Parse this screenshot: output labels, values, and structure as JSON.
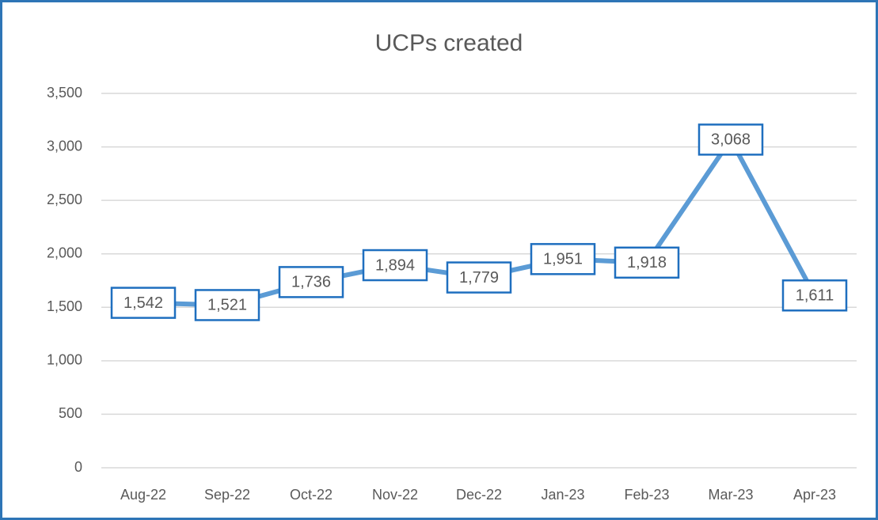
{
  "chart_data": {
    "type": "line",
    "title": "UCPs created",
    "categories": [
      "Aug-22",
      "Sep-22",
      "Oct-22",
      "Nov-22",
      "Dec-22",
      "Jan-23",
      "Feb-23",
      "Mar-23",
      "Apr-23"
    ],
    "series": [
      {
        "name": "UCPs created",
        "color": "#5b9bd5",
        "values": [
          1542,
          1521,
          1736,
          1894,
          1779,
          1951,
          1918,
          3068,
          1611
        ],
        "value_labels": [
          "1,542",
          "1,521",
          "1,736",
          "1,894",
          "1,779",
          "1,951",
          "1,918",
          "3,068",
          "1,611"
        ]
      }
    ],
    "ylim": [
      0,
      3500
    ],
    "yticks": [
      0,
      500,
      {
        "value": 1000,
        "label": "1,000"
      },
      {
        "value": 1500,
        "label": "1,500"
      },
      {
        "value": 2000,
        "label": "2,000"
      },
      {
        "value": 2500,
        "label": "2,500"
      },
      {
        "value": 3000,
        "label": "3,000"
      },
      {
        "value": 3500,
        "label": "3,500"
      }
    ],
    "grid": true
  }
}
